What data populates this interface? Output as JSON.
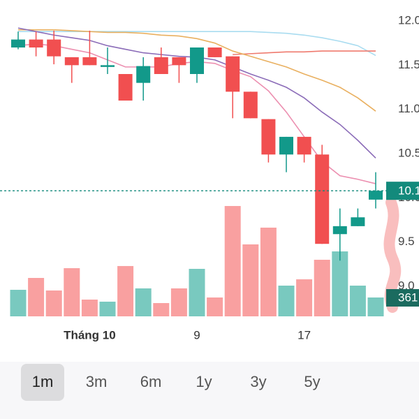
{
  "chart_data": {
    "type": "candlestick",
    "categories": [
      null,
      null,
      null,
      null,
      "Tháng 10",
      null,
      null,
      null,
      null,
      null,
      "9",
      null,
      null,
      null,
      null,
      null,
      "17",
      null,
      null,
      null,
      null
    ],
    "open": [
      11.7,
      11.79,
      11.79,
      11.59,
      11.59,
      11.48,
      11.4,
      11.3,
      11.59,
      11.59,
      11.4,
      11.7,
      11.6,
      11.2,
      10.89,
      10.49,
      10.69,
      10.49,
      9.59,
      9.68,
      9.98
    ],
    "high": [
      11.88,
      11.88,
      11.89,
      11.59,
      11.89,
      11.7,
      11.4,
      11.59,
      11.7,
      11.59,
      11.7,
      11.7,
      11.6,
      11.2,
      10.89,
      10.69,
      10.69,
      10.6,
      9.88,
      9.88,
      10.29
    ],
    "low": [
      11.68,
      11.6,
      11.51,
      11.3,
      11.5,
      11.4,
      11.1,
      11.1,
      11.4,
      11.3,
      11.3,
      11.59,
      10.9,
      10.9,
      10.4,
      10.29,
      10.4,
      9.48,
      9.29,
      9.68,
      9.88
    ],
    "close": [
      11.79,
      11.7,
      11.6,
      11.5,
      11.5,
      11.5,
      11.1,
      11.49,
      11.4,
      11.5,
      11.7,
      11.59,
      11.2,
      10.9,
      10.49,
      10.69,
      10.49,
      9.48,
      9.68,
      9.78,
      10.08
    ],
    "up_color": "#12998a",
    "down_color": "#f14f50",
    "volume": {
      "values": [
        508,
        735,
        495,
        922,
        321,
        281,
        963,
        535,
        254,
        535,
        909,
        361,
        2112,
        1377,
        1698,
        588,
        709,
        1083,
        1243,
        588,
        361
      ],
      "axis": "y2",
      "up_color": "#79c9bf",
      "down_color": "#f9a0a0"
    },
    "series": [
      {
        "color": "#a9dcf0",
        "values": [
          11.88,
          11.88,
          11.88,
          11.88,
          11.88,
          11.88,
          11.88,
          11.88,
          11.88,
          11.88,
          11.88,
          11.88,
          11.88,
          11.88,
          11.87,
          11.86,
          11.84,
          11.81,
          11.77,
          11.72,
          11.61
        ]
      },
      {
        "color": "#ef7a6e",
        "values": [
          null,
          null,
          null,
          null,
          null,
          null,
          null,
          null,
          null,
          null,
          null,
          null,
          11.62,
          11.63,
          11.64,
          11.65,
          11.65,
          11.66,
          11.66,
          11.66,
          11.66
        ]
      },
      {
        "color": "#e9b060",
        "values": [
          11.9,
          11.9,
          11.9,
          11.89,
          11.88,
          11.87,
          11.87,
          11.86,
          11.84,
          11.83,
          11.8,
          11.75,
          11.66,
          11.6,
          11.54,
          11.48,
          11.4,
          11.33,
          11.25,
          11.13,
          10.98
        ]
      },
      {
        "color": "#8b6cb8",
        "values": [
          11.92,
          11.88,
          11.84,
          11.81,
          11.78,
          11.72,
          11.68,
          11.64,
          11.62,
          11.6,
          11.59,
          11.56,
          11.48,
          11.4,
          11.33,
          11.25,
          11.13,
          10.97,
          10.83,
          10.65,
          10.45
        ]
      },
      {
        "color": "#ec8fb0",
        "values": [
          11.72,
          11.74,
          11.72,
          11.68,
          11.64,
          11.56,
          11.48,
          11.48,
          11.48,
          11.52,
          11.54,
          11.52,
          11.44,
          11.37,
          11.21,
          10.97,
          10.69,
          10.41,
          10.25,
          10.21,
          10.16
        ]
      }
    ],
    "ylim": [
      9.0,
      12.0
    ],
    "yticks": [
      {
        "value": 9,
        "label": "9.0"
      },
      9.5,
      {
        "value": 10,
        "label": "10.0"
      },
      10.5,
      {
        "value": 11,
        "label": "11.0"
      },
      11.5,
      {
        "value": 12,
        "label": "12.0"
      }
    ],
    "y2lim": [
      0,
      2200
    ],
    "last_price": {
      "value": 10.08,
      "label": "10.1",
      "color": "#138a7c"
    },
    "last_volume": {
      "value": 361,
      "label": "361",
      "color": "#1b6b5f"
    }
  },
  "range_buttons": [
    "1m",
    "3m",
    "6m",
    "1y",
    "3y",
    "5y"
  ],
  "selected_range": "1m"
}
